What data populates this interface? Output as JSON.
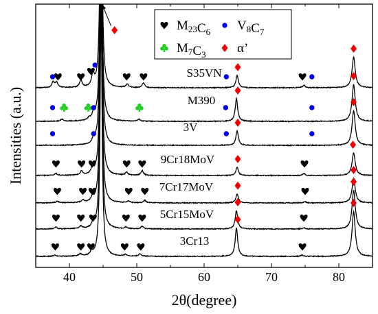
{
  "chart_data": {
    "type": "line",
    "xlabel": "2θ(degree)",
    "ylabel": "Intensities (a.u.)",
    "xlim": [
      35,
      85
    ],
    "x_ticks": [
      40,
      50,
      60,
      70,
      80
    ],
    "y_ticks_shown": false,
    "legend_placement": "top-center",
    "colors": {
      "M23C6": "#000000",
      "V8C7": "#0000ee",
      "M7C3": "#22cc22",
      "alpha": "#ee0000",
      "line": "#000000"
    },
    "legend": [
      {
        "key": "M23C6",
        "label": "M23C6",
        "symbol": "heart"
      },
      {
        "key": "V8C7",
        "label": "V8C7",
        "symbol": "circle"
      },
      {
        "key": "M7C3",
        "label": "M7C3",
        "symbol": "club"
      },
      {
        "key": "alpha",
        "label": "α’",
        "symbol": "diamond"
      }
    ],
    "series": [
      {
        "name": "S35VN",
        "peaks": [
          [
            37.6,
            0.14
          ],
          [
            38.1,
            0.12
          ],
          [
            41.7,
            0.18
          ],
          [
            43.5,
            0.3
          ],
          [
            44.7,
            6.0
          ],
          [
            48.6,
            0.08
          ],
          [
            51.0,
            0.12
          ],
          [
            64.9,
            0.3
          ],
          [
            74.8,
            0.06
          ],
          [
            82.2,
            0.75
          ]
        ],
        "markers": [
          {
            "phase": "V8C7",
            "x": 37.5
          },
          {
            "phase": "M23C6",
            "x": 38.3
          },
          {
            "phase": "M23C6",
            "x": 41.7
          },
          {
            "phase": "M23C6",
            "x": 43.2
          },
          {
            "phase": "V8C7",
            "x": 43.8
          },
          {
            "phase": "M23C6",
            "x": 48.5
          },
          {
            "phase": "M23C6",
            "x": 51.0
          },
          {
            "phase": "V8C7",
            "x": 63.3
          },
          {
            "phase": "alpha",
            "x": 65.0
          },
          {
            "phase": "M23C6",
            "x": 74.6
          },
          {
            "phase": "V8C7",
            "x": 76.0
          },
          {
            "phase": "alpha",
            "x": 82.2
          }
        ]
      },
      {
        "name": "M390",
        "peaks": [
          [
            38.9,
            0.05
          ],
          [
            42.9,
            0.05
          ],
          [
            43.6,
            0.18
          ],
          [
            44.7,
            6.0
          ],
          [
            50.3,
            0.05
          ],
          [
            64.8,
            0.55
          ],
          [
            82.2,
            0.9
          ]
        ],
        "markers": [
          {
            "phase": "V8C7",
            "x": 37.5
          },
          {
            "phase": "M7C3",
            "x": 39.2
          },
          {
            "phase": "M7C3",
            "x": 42.8
          },
          {
            "phase": "V8C7",
            "x": 43.6
          },
          {
            "phase": "M7C3",
            "x": 50.4
          },
          {
            "phase": "V8C7",
            "x": 63.2
          },
          {
            "phase": "alpha",
            "x": 65.0
          },
          {
            "phase": "V8C7",
            "x": 76.0
          },
          {
            "phase": "alpha",
            "x": 82.2
          }
        ]
      },
      {
        "name": "3V",
        "peaks": [
          [
            43.6,
            0.12
          ],
          [
            44.7,
            6.0
          ],
          [
            64.9,
            0.35
          ],
          [
            82.2,
            0.85
          ]
        ],
        "markers": [
          {
            "phase": "V8C7",
            "x": 37.5
          },
          {
            "phase": "V8C7",
            "x": 43.6
          },
          {
            "phase": "V8C7",
            "x": 63.3
          },
          {
            "phase": "alpha",
            "x": 65.0
          },
          {
            "phase": "V8C7",
            "x": 76.0
          },
          {
            "phase": "alpha",
            "x": 82.2
          }
        ]
      },
      {
        "name": "9Cr18MoV",
        "peaks": [
          [
            38.0,
            0.05
          ],
          [
            41.8,
            0.1
          ],
          [
            43.4,
            0.15
          ],
          [
            44.7,
            6.0
          ],
          [
            48.5,
            0.07
          ],
          [
            50.8,
            0.12
          ],
          [
            64.9,
            0.2
          ],
          [
            74.8,
            0.05
          ],
          [
            82.2,
            0.55
          ]
        ],
        "markers": [
          {
            "phase": "M23C6",
            "x": 38.0
          },
          {
            "phase": "M23C6",
            "x": 41.8
          },
          {
            "phase": "M23C6",
            "x": 43.4
          },
          {
            "phase": "M23C6",
            "x": 48.5
          },
          {
            "phase": "M23C6",
            "x": 50.8
          },
          {
            "phase": "alpha",
            "x": 65.0
          },
          {
            "phase": "M23C6",
            "x": 74.9
          },
          {
            "phase": "alpha",
            "x": 82.1
          }
        ]
      },
      {
        "name": "7Cr17MoV",
        "peaks": [
          [
            38.2,
            0.04
          ],
          [
            42.0,
            0.06
          ],
          [
            43.4,
            0.1
          ],
          [
            44.7,
            6.0
          ],
          [
            48.8,
            0.04
          ],
          [
            51.2,
            0.06
          ],
          [
            64.9,
            0.22
          ],
          [
            75.0,
            0.03
          ],
          [
            82.2,
            0.6
          ]
        ],
        "markers": [
          {
            "phase": "M23C6",
            "x": 38.2
          },
          {
            "phase": "M23C6",
            "x": 42.0
          },
          {
            "phase": "M23C6",
            "x": 43.4
          },
          {
            "phase": "M23C6",
            "x": 48.8
          },
          {
            "phase": "M23C6",
            "x": 51.2
          },
          {
            "phase": "alpha",
            "x": 65.0
          },
          {
            "phase": "M23C6",
            "x": 75.0
          },
          {
            "phase": "alpha",
            "x": 82.2
          }
        ]
      },
      {
        "name": "5Cr15MoV",
        "peaks": [
          [
            38.0,
            0.04
          ],
          [
            41.7,
            0.06
          ],
          [
            43.5,
            0.1
          ],
          [
            44.7,
            6.0
          ],
          [
            48.4,
            0.04
          ],
          [
            50.8,
            0.06
          ],
          [
            64.8,
            0.45
          ],
          [
            74.8,
            0.03
          ],
          [
            82.2,
            0.95
          ]
        ],
        "markers": [
          {
            "phase": "M23C6",
            "x": 38.0
          },
          {
            "phase": "M23C6",
            "x": 41.7
          },
          {
            "phase": "M23C6",
            "x": 43.5
          },
          {
            "phase": "M23C6",
            "x": 48.4
          },
          {
            "phase": "M23C6",
            "x": 50.8
          },
          {
            "phase": "alpha",
            "x": 65.0
          },
          {
            "phase": "M23C6",
            "x": 74.8
          },
          {
            "phase": "alpha",
            "x": 82.2
          }
        ]
      },
      {
        "name": "3Cr13",
        "peaks": [
          [
            37.8,
            0.03
          ],
          [
            41.6,
            0.05
          ],
          [
            43.3,
            0.08
          ],
          [
            44.7,
            6.0
          ],
          [
            48.3,
            0.04
          ],
          [
            50.5,
            0.06
          ],
          [
            64.8,
            0.7
          ],
          [
            74.5,
            0.03
          ],
          [
            82.2,
            1.1
          ]
        ],
        "markers": [
          {
            "phase": "M23C6",
            "x": 37.9
          },
          {
            "phase": "M23C6",
            "x": 41.7
          },
          {
            "phase": "M23C6",
            "x": 43.2
          },
          {
            "phase": "M23C6",
            "x": 48.2
          },
          {
            "phase": "M23C6",
            "x": 50.6
          },
          {
            "phase": "alpha",
            "x": 65.0
          },
          {
            "phase": "M23C6",
            "x": 74.6
          },
          {
            "phase": "alpha",
            "x": 82.2
          }
        ]
      }
    ],
    "annotation": {
      "type": "arrow",
      "phase": "alpha",
      "from_x": 44.9,
      "to_x": 46.5
    }
  }
}
